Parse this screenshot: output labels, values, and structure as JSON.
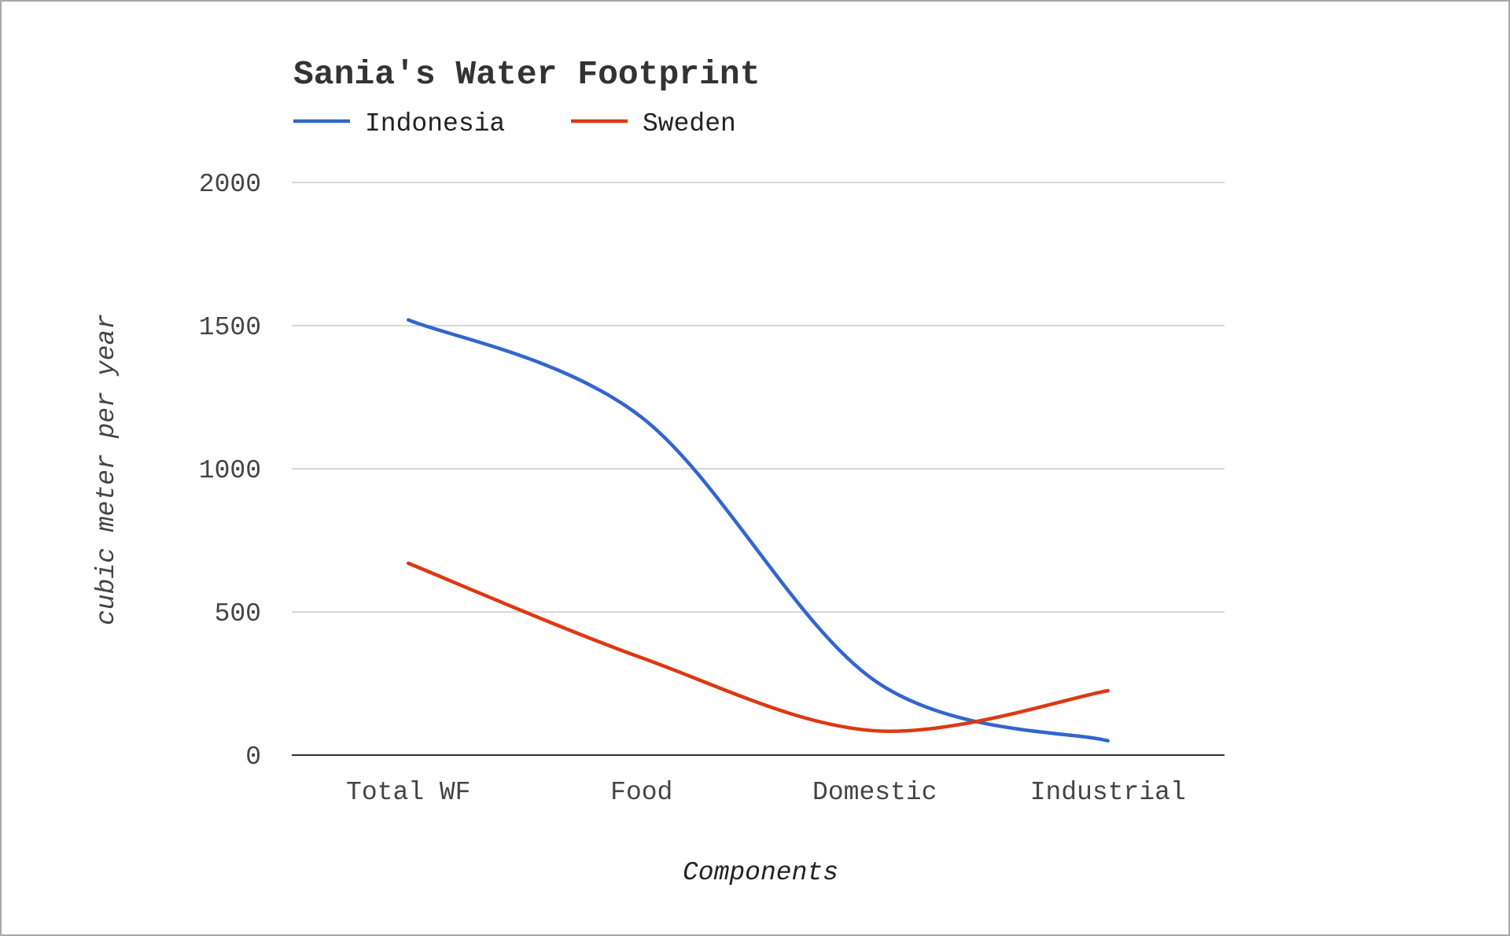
{
  "chart_data": {
    "type": "line",
    "title": "Sania's Water Footprint",
    "xlabel": "Components",
    "ylabel": "cubic meter per year",
    "categories": [
      "Total WF",
      "Food",
      "Domestic",
      "Industrial"
    ],
    "series": [
      {
        "name": "Indonesia",
        "color": "#3366cc",
        "values": [
          1520,
          1180,
          260,
          50
        ]
      },
      {
        "name": "Sweden",
        "color": "#dc3912",
        "values": [
          670,
          340,
          85,
          225
        ]
      }
    ],
    "yticks": [
      "0",
      "500",
      "1000",
      "1500",
      "2000"
    ],
    "ylim": [
      0,
      2000
    ],
    "grid": true,
    "legend_position": "top",
    "curve": "smooth"
  }
}
